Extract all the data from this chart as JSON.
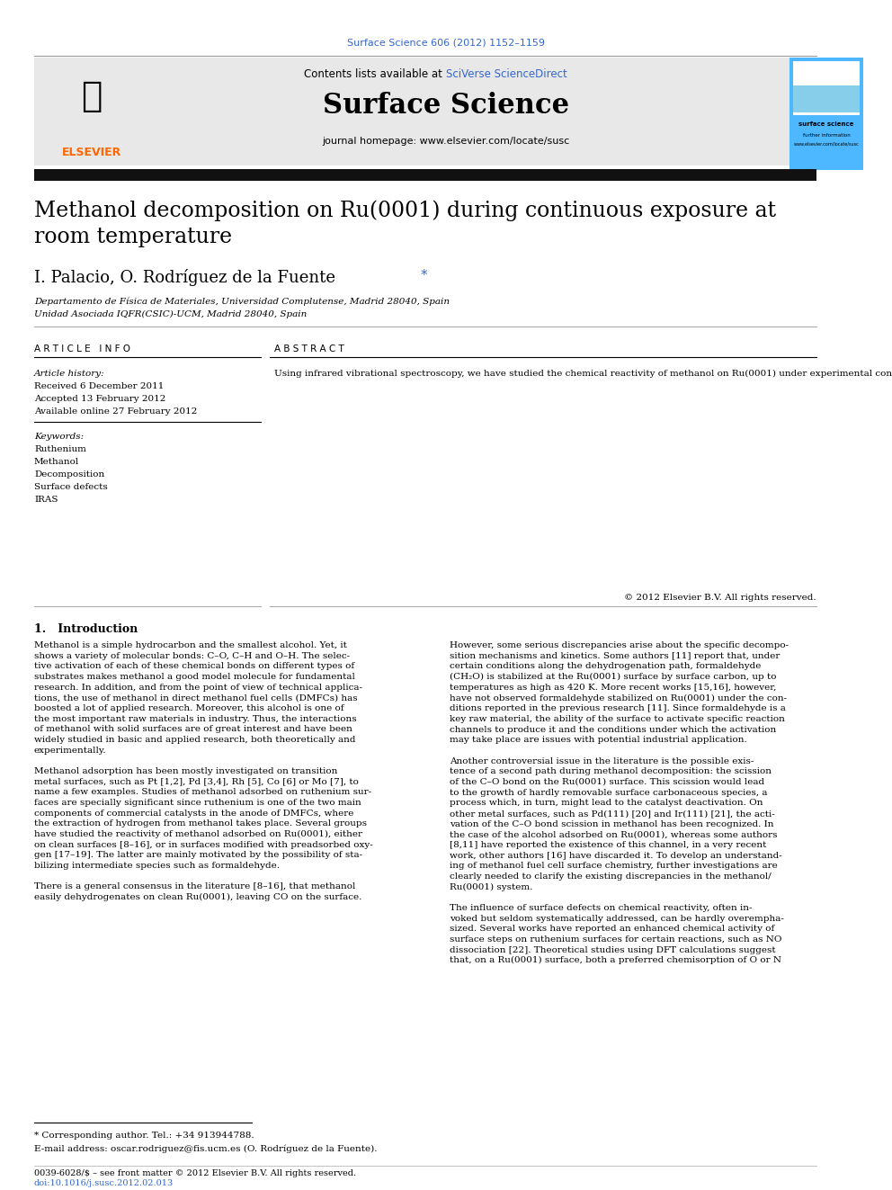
{
  "journal_ref": "Surface Science 606 (2012) 1152–1159",
  "journal_ref_color": "#3366cc",
  "header_text1": "Contents lists available at ",
  "header_sciverse": "SciVerse ScienceDirect",
  "header_sciverse_color": "#3366cc",
  "journal_title": "Surface Science",
  "journal_homepage": "journal homepage: www.elsevier.com/locate/susc",
  "paper_title": "Methanol decomposition on Ru(0001) during continuous exposure at\nroom temperature",
  "authors": "I. Palacio, O. Rodríguez de la Fuente",
  "author_star": "*",
  "affil1": "Departamento de Física de Materiales, Universidad Complutense, Madrid 28040, Spain",
  "affil2": "Unidad Asociada IQFR(CSIC)-UCM, Madrid 28040, Spain",
  "article_info_header": "A R T I C L E   I N F O",
  "abstract_header": "A B S T R A C T",
  "article_history_label": "Article history:",
  "received": "Received 6 December 2011",
  "accepted": "Accepted 13 February 2012",
  "available": "Available online 27 February 2012",
  "keywords_label": "Keywords:",
  "keywords": [
    "Ruthenium",
    "Methanol",
    "Decomposition",
    "Surface defects",
    "IRAS"
  ],
  "abstract_text": "Using infrared vibrational spectroscopy, we have studied the chemical reactivity of methanol on Ru(0001) under experimental conditions closer to real catalysts than those existing in most of the literature. We have performed experiments in the pressure range from 10−8 to 10−3 mbar, exposing the surface to large gas doses at room temperature. We show the co-existence of two active paths: one involves the complete de-hydrogenation of methanol into CO, the other one promotes the scission of the C–O bond of methanol, leaving carbon and oxygen on the surface, which, after large exposures, deactivate the surface towards a further evolution of the molecular adlayer. In no case, the presence of stable reaction intermediates is detected along either of the two reaction paths. We have compared the behavior of flat ruthenium surfaces with those having a variable concentration of controlled surface defects. Surface defects, mainly steps, seem to accelerate the rate of both reaction paths, but do not activate any new reaction path or stabilize intermediates.",
  "copyright": "© 2012 Elsevier B.V. All rights reserved.",
  "intro_header": "1.   Introduction",
  "intro_col1": "Methanol is a simple hydrocarbon and the smallest alcohol. Yet, it\nshows a variety of molecular bonds: C–O, C–H and O–H. The selec-\ntive activation of each of these chemical bonds on different types of\nsubstrates makes methanol a good model molecule for fundamental\nresearch. In addition, and from the point of view of technical applica-\ntions, the use of methanol in direct methanol fuel cells (DMFCs) has\nboosted a lot of applied research. Moreover, this alcohol is one of\nthe most important raw materials in industry. Thus, the interactions\nof methanol with solid surfaces are of great interest and have been\nwidely studied in basic and applied research, both theoretically and\nexperimentally.\n\nMethanol adsorption has been mostly investigated on transition\nmetal surfaces, such as Pt [1,2], Pd [3,4], Rh [5], Co [6] or Mo [7], to\nname a few examples. Studies of methanol adsorbed on ruthenium sur-\nfaces are specially significant since ruthenium is one of the two main\ncomponents of commercial catalysts in the anode of DMFCs, where\nthe extraction of hydrogen from methanol takes place. Several groups\nhave studied the reactivity of methanol adsorbed on Ru(0001), either\non clean surfaces [8–16], or in surfaces modified with preadsorbed oxy-\ngen [17–19]. The latter are mainly motivated by the possibility of sta-\nbilizing intermediate species such as formaldehyde.\n\nThere is a general consensus in the literature [8–16], that methanol\neasily dehydrogenates on clean Ru(0001), leaving CO on the surface.",
  "intro_col2": "However, some serious discrepancies arise about the specific decompo-\nsition mechanisms and kinetics. Some authors [11] report that, under\ncertain conditions along the dehydrogenation path, formaldehyde\n(CH₂O) is stabilized at the Ru(0001) surface by surface carbon, up to\ntemperatures as high as 420 K. More recent works [15,16], however,\nhave not observed formaldehyde stabilized on Ru(0001) under the con-\nditions reported in the previous research [11]. Since formaldehyde is a\nkey raw material, the ability of the surface to activate specific reaction\nchannels to produce it and the conditions under which the activation\nmay take place are issues with potential industrial application.\n\nAnother controversial issue in the literature is the possible exis-\ntence of a second path during methanol decomposition: the scission\nof the C–O bond on the Ru(0001) surface. This scission would lead\nto the growth of hardly removable surface carbonaceous species, a\nprocess which, in turn, might lead to the catalyst deactivation. On\nother metal surfaces, such as Pd(111) [20] and Ir(111) [21], the acti-\nvation of the C–O bond scission in methanol has been recognized. In\nthe case of the alcohol adsorbed on Ru(0001), whereas some authors\n[8,11] have reported the existence of this channel, in a very recent\nwork, other authors [16] have discarded it. To develop an understand-\ning of methanol fuel cell surface chemistry, further investigations are\nclearly needed to clarify the existing discrepancies in the methanol/\nRu(0001) system.\n\nThe influence of surface defects on chemical reactivity, often in-\nvoked but seldom systematically addressed, can be hardly overempha-\nsized. Several works have reported an enhanced chemical activity of\nsurface steps on ruthenium surfaces for certain reactions, such as NO\ndissociation [22]. Theoretical studies using DFT calculations suggest\nthat, on a Ru(0001) surface, both a preferred chemisorption of O or N",
  "footnote_star": "* Corresponding author. Tel.: +34 913944788.",
  "footnote_email": "E-mail address: oscar.rodriguez@fis.ucm.es (O. Rodríguez de la Fuente).",
  "footer1": "0039-6028/$ – see front matter © 2012 Elsevier B.V. All rights reserved.",
  "footer2": "doi:10.1016/j.susc.2012.02.013",
  "footer2_color": "#3366cc",
  "bg_color": "#ffffff",
  "header_bg_color": "#e8e8e8",
  "thick_bar_color": "#111111",
  "thin_line_color": "#aaaaaa",
  "elsevier_color": "#FF6600",
  "cover_blue": "#4db8ff",
  "cover_light": "#87ceeb"
}
